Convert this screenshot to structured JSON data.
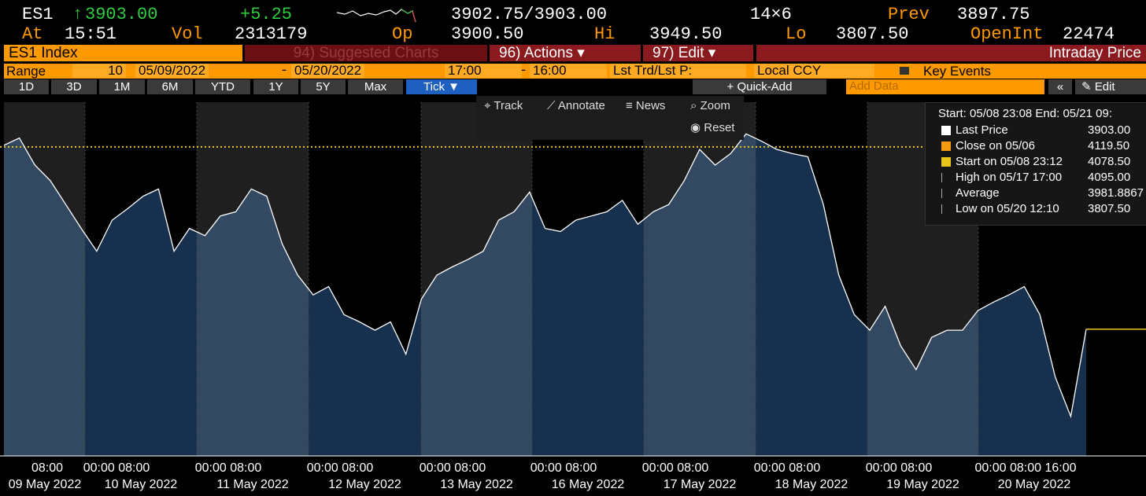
{
  "header": {
    "symbol": "ES1",
    "last": "3903.00",
    "change": "+5.25",
    "bid_ask": "3902.75/3903.00",
    "size": "14×6",
    "prev_label": "Prev",
    "prev": "3897.75",
    "at_label": "At",
    "time": "15:51",
    "vol_label": "Vol",
    "vol": "2313179",
    "op_label": "Op",
    "op": "3900.50",
    "hi_label": "Hi",
    "hi": "3949.50",
    "lo_label": "Lo",
    "lo": "3807.50",
    "oi_label": "OpenInt",
    "oi": "22474"
  },
  "toolbar": {
    "ticker": "ES1 Index",
    "suggested": "94) Suggested Charts",
    "actions": "96) Actions",
    "edit": "97) Edit",
    "view": "Intraday Price"
  },
  "range_bar": {
    "label": "Range",
    "bars": "10",
    "start_date": "05/09/2022",
    "sep1": "-",
    "end_date": "05/20/2022",
    "start_time": "17:00",
    "sep2": "-",
    "end_time": "16:00",
    "field": "Lst Trd/Lst P:",
    "currency": "Local CCY",
    "events": "Key Events"
  },
  "periods": [
    "1D",
    "3D",
    "1M",
    "6M",
    "YTD",
    "1Y",
    "5Y",
    "Max",
    "Tick"
  ],
  "tools": {
    "quick_add": "+ Quick-Add",
    "add_data": "Add Data",
    "edit": "Edit",
    "track": "Track",
    "annotate": "Annotate",
    "news": "News",
    "zoom": "Zoom",
    "reset": "Reset"
  },
  "chart_data": {
    "type": "area",
    "name": "Last Price",
    "color": "#ffffff",
    "fill": "#17304d",
    "values": [
      4080,
      4087,
      4061,
      4046,
      4023,
      4000,
      3978,
      4008,
      4019,
      4031,
      4038,
      3978,
      4000,
      3993,
      4012,
      4016,
      4038,
      4031,
      3985,
      3955,
      3936,
      3944,
      3917,
      3910,
      3902,
      3910,
      3879,
      3932,
      3955,
      3963,
      3970,
      3978,
      4008,
      4016,
      4035,
      4000,
      3997,
      4008,
      4012,
      4016,
      4027,
      4004,
      4016,
      4023,
      4046,
      4076,
      4061,
      4072,
      4091,
      4084,
      4076,
      4072,
      4069,
      4023,
      3955,
      3917,
      3902,
      3925,
      3887,
      3864,
      3895,
      3902,
      3902,
      3921,
      3929,
      3936,
      3944,
      3917,
      3857,
      3819,
      3903
    ],
    "ylim": [
      3781,
      4121.5
    ],
    "legend_header": "Start: 05/08 23:08 End: 05/21 09:",
    "legend": [
      {
        "name": "Last Price",
        "color": "#ffffff",
        "value": {
          "value": 3903,
          "label": "3903.00"
        }
      },
      {
        "name": "Close on 05/06",
        "color": "#f39c12",
        "value": {
          "value": 4119.5,
          "label": "4119.50"
        }
      },
      {
        "name": "Start on 05/08 23:12",
        "color": "#e8c51a",
        "value": {
          "value": 4078.5,
          "label": "4078.50"
        }
      },
      {
        "name": "High on 05/17 17:00",
        "color": "#aaaaaa",
        "value": {
          "value": 4095,
          "label": "4095.00"
        }
      },
      {
        "name": "Average",
        "color": "#aaaaaa",
        "value": {
          "value": 3981.8867,
          "label": "3981.8867"
        }
      },
      {
        "name": "Low on 05/20 12:10",
        "color": "#aaaaaa",
        "value": {
          "value": 3807.5,
          "label": "3807.50"
        }
      }
    ],
    "xtick_times": [
      "08:00",
      "00:00 08:00",
      "00:00 08:00",
      "00:00 08:00",
      "00:00 08:00",
      "00:00 08:00",
      "00:00 08:00",
      "00:00 08:00",
      "00:00 08:00",
      "00:00 08:00 16:00"
    ],
    "xtick_dates": [
      "09 May 2022",
      "10 May 2022",
      "11 May 2022",
      "12 May 2022",
      "13 May 2022",
      "16 May 2022",
      "17 May 2022",
      "18 May 2022",
      "19 May 2022",
      "20 May 2022"
    ]
  }
}
